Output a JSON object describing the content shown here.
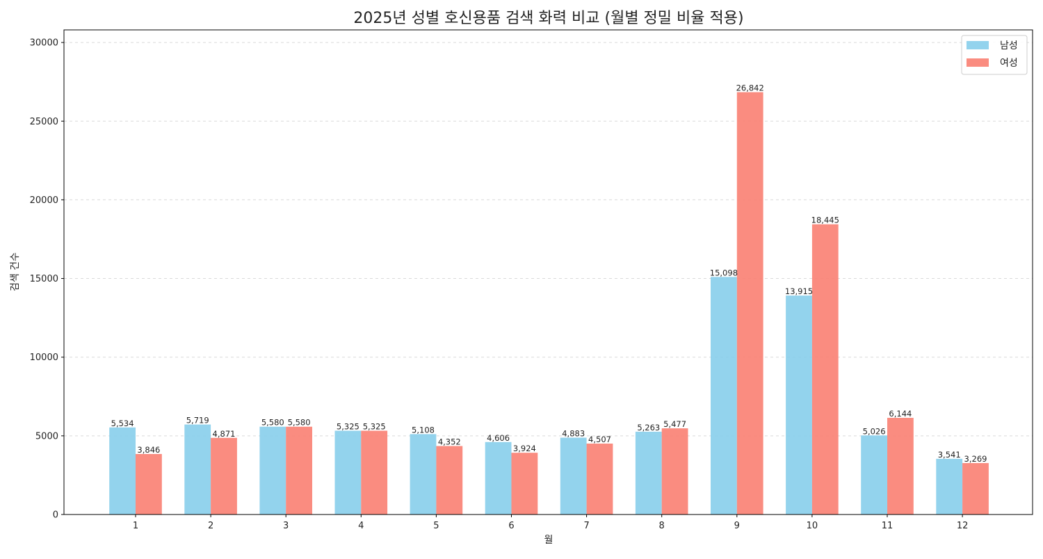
{
  "chart_data": {
    "type": "bar",
    "title": "2025년 성별 호신용품 검색 화력 비교 (월별 정밀 비율 적용)",
    "xlabel": "월",
    "ylabel": "검색 건수",
    "categories": [
      "1",
      "2",
      "3",
      "4",
      "5",
      "6",
      "7",
      "8",
      "9",
      "10",
      "11",
      "12"
    ],
    "series": [
      {
        "name": "남성",
        "color": "#87ceeb",
        "values": [
          5534,
          5719,
          5580,
          5325,
          5108,
          4606,
          4883,
          5263,
          15098,
          13915,
          5026,
          3541
        ],
        "labels": [
          "5,534",
          "5,719",
          "5,580",
          "5,325",
          "5,108",
          "4,606",
          "4,883",
          "5,263",
          "15,098",
          "13,915",
          "5,026",
          "3,541"
        ]
      },
      {
        "name": "여성",
        "color": "#fa8072",
        "values": [
          3846,
          4871,
          5580,
          5325,
          4352,
          3924,
          4507,
          5477,
          26842,
          18445,
          6144,
          3269
        ],
        "labels": [
          "3,846",
          "4,871",
          "5,580",
          "5,325",
          "4,352",
          "3,924",
          "4,507",
          "5,477",
          "26,842",
          "18,445",
          "6,144",
          "3,269"
        ]
      }
    ],
    "ylim": [
      0,
      30800
    ],
    "yticks": [
      0,
      5000,
      10000,
      15000,
      20000,
      25000,
      30000
    ],
    "ytick_labels": [
      "0",
      "5000",
      "10000",
      "15000",
      "20000",
      "25000",
      "30000"
    ],
    "grid": "y-dashed",
    "legend_position": "top-right"
  }
}
